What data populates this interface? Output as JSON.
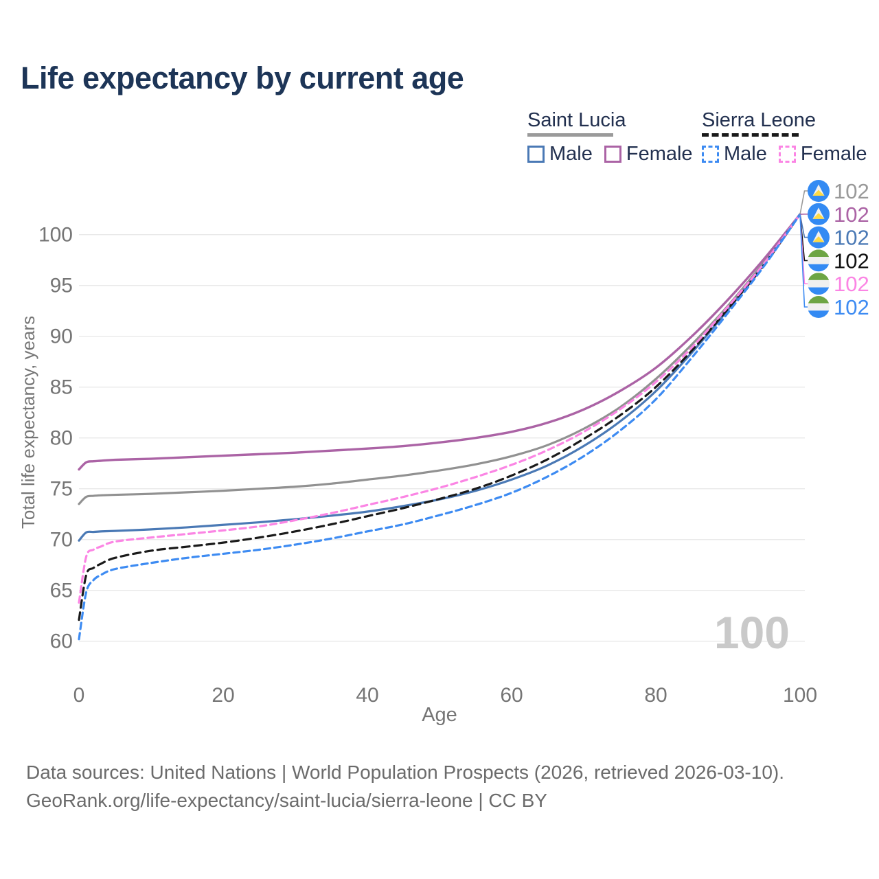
{
  "title": "Life expectancy by current age",
  "legend": {
    "groups": [
      {
        "country": "Saint Lucia",
        "line_style": "solid",
        "underline_color": "#9a9a9a",
        "items": [
          {
            "label": "Male",
            "color": "#4a79b5",
            "dashed": false
          },
          {
            "label": "Female",
            "color": "#ab63a5",
            "dashed": false
          }
        ]
      },
      {
        "country": "Sierra Leone",
        "line_style": "dashed",
        "underline_color": "#1a1a1a",
        "items": [
          {
            "label": "Male",
            "color": "#3d8bf2",
            "dashed": true
          },
          {
            "label": "Female",
            "color": "#fb85e4",
            "dashed": true
          }
        ]
      }
    ]
  },
  "watermark": "100",
  "footer": {
    "line1": "Data sources: United Nations | World Population Prospects (2026, retrieved 2026-03-10).",
    "line2": "GeoRank.org/life-expectancy/saint-lucia/sierra-leone | CC BY"
  },
  "colors": {
    "title": "#1d3557",
    "axis_text": "#757575",
    "gridline": "#e9e9e9",
    "watermark": "#c9c9c9",
    "flag_saint_lucia_blue": "#338af3",
    "flag_saint_lucia_yellow": "#ffda44",
    "flag_white": "#f0f0f0",
    "flag_sierra_leone_green": "#6da544",
    "flag_sierra_leone_blue": "#338af3"
  },
  "chart_data": {
    "type": "line",
    "title": "Life expectancy by current age",
    "xlabel": "Age",
    "ylabel": "Total life expectancy, years",
    "xlim": [
      0,
      100
    ],
    "ylim": [
      60,
      102
    ],
    "xticks": [
      0,
      20,
      40,
      60,
      80,
      100
    ],
    "yticks": [
      60,
      65,
      70,
      75,
      80,
      85,
      90,
      95,
      100
    ],
    "grid": "horizontal-only",
    "legend_position": "top-right",
    "x": [
      0,
      1,
      2,
      3,
      5,
      10,
      15,
      20,
      25,
      30,
      35,
      40,
      45,
      50,
      55,
      60,
      65,
      70,
      75,
      80,
      85,
      90,
      95,
      100
    ],
    "series": [
      {
        "id": "sl-both",
        "name": "Saint Lucia — Both sexes",
        "color": "#919191",
        "dash": null,
        "width": 3.2,
        "values": [
          73.5,
          74.2,
          74.3,
          74.35,
          74.4,
          74.5,
          74.65,
          74.8,
          75.0,
          75.2,
          75.5,
          75.9,
          76.3,
          76.8,
          77.4,
          78.2,
          79.3,
          80.9,
          83.0,
          85.8,
          89.2,
          93.0,
          97.3,
          102
        ]
      },
      {
        "id": "sl-female",
        "name": "Saint Lucia — Female",
        "color": "#ab63a5",
        "dash": null,
        "width": 3.4,
        "values": [
          76.9,
          77.6,
          77.7,
          77.75,
          77.85,
          77.95,
          78.1,
          78.25,
          78.4,
          78.55,
          78.75,
          78.95,
          79.2,
          79.55,
          80.0,
          80.6,
          81.5,
          82.8,
          84.6,
          86.9,
          90.0,
          93.6,
          97.6,
          102
        ]
      },
      {
        "id": "sl-male",
        "name": "Saint Lucia — Male",
        "color": "#4a79b5",
        "dash": null,
        "width": 3.2,
        "values": [
          69.9,
          70.7,
          70.75,
          70.8,
          70.85,
          71.0,
          71.2,
          71.45,
          71.7,
          72.0,
          72.35,
          72.75,
          73.3,
          73.95,
          74.8,
          75.9,
          77.3,
          79.2,
          81.6,
          84.6,
          88.4,
          92.6,
          97.1,
          102
        ]
      },
      {
        "id": "sle-both",
        "name": "Sierra Leone — Both sexes",
        "color": "#1a1a1a",
        "dash": "11 7",
        "width": 3.2,
        "values": [
          62.1,
          66.5,
          67.2,
          67.6,
          68.2,
          68.9,
          69.3,
          69.7,
          70.2,
          70.8,
          71.5,
          72.3,
          73.1,
          74.0,
          75.0,
          76.3,
          77.9,
          79.9,
          82.2,
          85.0,
          88.6,
          92.7,
          97.0,
          102
        ]
      },
      {
        "id": "sle-female",
        "name": "Sierra Leone — Female",
        "color": "#fb85e4",
        "dash": "9 6",
        "width": 3.2,
        "values": [
          63.8,
          68.3,
          69.0,
          69.3,
          69.8,
          70.2,
          70.55,
          70.9,
          71.3,
          71.9,
          72.6,
          73.4,
          74.2,
          75.1,
          76.15,
          77.35,
          78.8,
          80.6,
          82.8,
          85.5,
          88.9,
          92.9,
          97.15,
          102
        ]
      },
      {
        "id": "sle-male",
        "name": "Sierra Leone — Male",
        "color": "#3d8bf2",
        "dash": "9 6",
        "width": 3.2,
        "values": [
          60.2,
          64.8,
          66.0,
          66.5,
          67.1,
          67.7,
          68.2,
          68.6,
          69.0,
          69.5,
          70.1,
          70.8,
          71.5,
          72.4,
          73.4,
          74.6,
          76.2,
          78.2,
          80.7,
          83.8,
          87.9,
          92.3,
          96.9,
          102
        ]
      }
    ],
    "end_labels": [
      {
        "series": "sl-both",
        "flag": "saint-lucia",
        "value": "102",
        "color": "#999999"
      },
      {
        "series": "sl-female",
        "flag": "saint-lucia",
        "value": "102",
        "color": "#ab63a5"
      },
      {
        "series": "sl-male",
        "flag": "saint-lucia",
        "value": "102",
        "color": "#4a79b5"
      },
      {
        "series": "sle-both",
        "flag": "sierra-leone",
        "value": "102",
        "color": "#111111"
      },
      {
        "series": "sle-female",
        "flag": "sierra-leone",
        "value": "102",
        "color": "#fb85e4"
      },
      {
        "series": "sle-male",
        "flag": "sierra-leone",
        "value": "102",
        "color": "#3d8bf2"
      }
    ]
  }
}
